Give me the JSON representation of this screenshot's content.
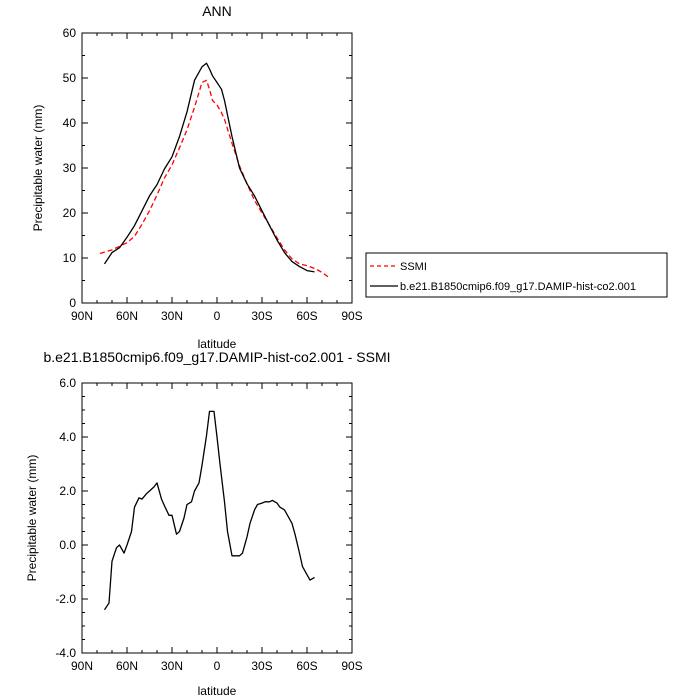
{
  "chart_data": [
    {
      "type": "line",
      "title": "ANN",
      "xlabel": "latitude",
      "ylabel": "Precipitable water (mm)",
      "xlim": [
        90,
        -90
      ],
      "ylim": [
        0,
        60
      ],
      "xticks": [
        90,
        60,
        30,
        0,
        -30,
        -60,
        -90
      ],
      "xtick_labels": [
        "90N",
        "60N",
        "30N",
        "0",
        "30S",
        "60S",
        "90S"
      ],
      "yticks": [
        0,
        10,
        20,
        30,
        40,
        50,
        60
      ],
      "ytick_labels": [
        "0",
        "10",
        "20",
        "30",
        "40",
        "50",
        "60"
      ],
      "legend_position": "right",
      "series": [
        {
          "name": "SSMI",
          "style": "dashed",
          "color": "#ff0000",
          "x": [
            78,
            75,
            70,
            65,
            60,
            55,
            50,
            45,
            40,
            35,
            30,
            25,
            20,
            15,
            10,
            7,
            5,
            3,
            0,
            -3,
            -5,
            -10,
            -15,
            -20,
            -25,
            -30,
            -35,
            -40,
            -45,
            -50,
            -55,
            -60,
            -65,
            -70,
            -75
          ],
          "y": [
            11.0,
            11.3,
            11.8,
            12.6,
            13.4,
            14.8,
            17.5,
            20.5,
            24.0,
            27.8,
            30.7,
            34.5,
            38.5,
            43.5,
            49.0,
            49.5,
            47.5,
            45.0,
            44.0,
            42.3,
            40.8,
            35.5,
            30.5,
            26.5,
            22.8,
            20.0,
            17.3,
            14.5,
            11.8,
            9.8,
            8.7,
            8.3,
            7.7,
            6.8,
            5.6
          ]
        },
        {
          "name": "b.e21.B1850cmip6.f09_g17.DAMIP-hist-co2.001",
          "style": "solid",
          "color": "#000000",
          "x": [
            75,
            70,
            65,
            60,
            55,
            50,
            45,
            40,
            35,
            30,
            25,
            20,
            15,
            10,
            7,
            5,
            3,
            0,
            -3,
            -5,
            -10,
            -15,
            -20,
            -25,
            -30,
            -35,
            -40,
            -45,
            -50,
            -55,
            -60,
            -65
          ],
          "y": [
            8.7,
            11.2,
            12.3,
            14.6,
            17.2,
            20.5,
            23.8,
            26.3,
            29.8,
            32.5,
            37.0,
            42.5,
            49.5,
            52.5,
            53.3,
            52.0,
            50.5,
            49.0,
            47.5,
            45.0,
            37.0,
            30.0,
            26.5,
            23.8,
            20.5,
            17.2,
            14.0,
            11.2,
            9.2,
            8.1,
            7.2,
            6.9
          ]
        }
      ]
    },
    {
      "type": "line",
      "title": "b.e21.B1850cmip6.f09_g17.DAMIP-hist-co2.001 - SSMI",
      "xlabel": "latitude",
      "ylabel": "Precipitable water (mm)",
      "xlim": [
        90,
        -90
      ],
      "ylim": [
        -4,
        6
      ],
      "xticks": [
        90,
        60,
        30,
        0,
        -30,
        -60,
        -90
      ],
      "xtick_labels": [
        "90N",
        "60N",
        "30N",
        "0",
        "30S",
        "60S",
        "90S"
      ],
      "yticks": [
        -4,
        -2,
        0,
        2,
        4,
        6
      ],
      "ytick_labels": [
        "-4.0",
        "-2.0",
        "0.0",
        "2.0",
        "4.0",
        "6.0"
      ],
      "series": [
        {
          "style": "solid",
          "color": "#000000",
          "x": [
            75,
            72,
            70,
            67,
            65,
            62,
            60,
            57,
            55,
            52,
            50,
            47,
            45,
            42,
            40,
            37,
            35,
            32,
            30,
            27,
            25,
            22,
            20,
            17,
            15,
            12,
            10,
            7,
            5,
            2,
            0,
            -2,
            -5,
            -7,
            -10,
            -12,
            -15,
            -17,
            -20,
            -22,
            -25,
            -27,
            -30,
            -32,
            -35,
            -37,
            -40,
            -42,
            -45,
            -47,
            -50,
            -52,
            -55,
            -57,
            -60,
            -62,
            -65
          ],
          "y": [
            -2.4,
            -2.15,
            -0.6,
            -0.1,
            0.0,
            -0.3,
            0.0,
            0.5,
            1.4,
            1.75,
            1.7,
            1.9,
            2.0,
            2.15,
            2.3,
            1.7,
            1.45,
            1.1,
            1.1,
            0.4,
            0.5,
            1.0,
            1.5,
            1.6,
            2.0,
            2.3,
            2.95,
            4.05,
            4.95,
            4.95,
            4.0,
            3.0,
            1.6,
            0.5,
            -0.4,
            -0.4,
            -0.4,
            -0.3,
            0.3,
            0.8,
            1.3,
            1.5,
            1.55,
            1.6,
            1.6,
            1.65,
            1.55,
            1.4,
            1.3,
            1.1,
            0.8,
            0.4,
            -0.3,
            -0.8,
            -1.1,
            -1.3,
            -1.2
          ]
        }
      ]
    }
  ]
}
